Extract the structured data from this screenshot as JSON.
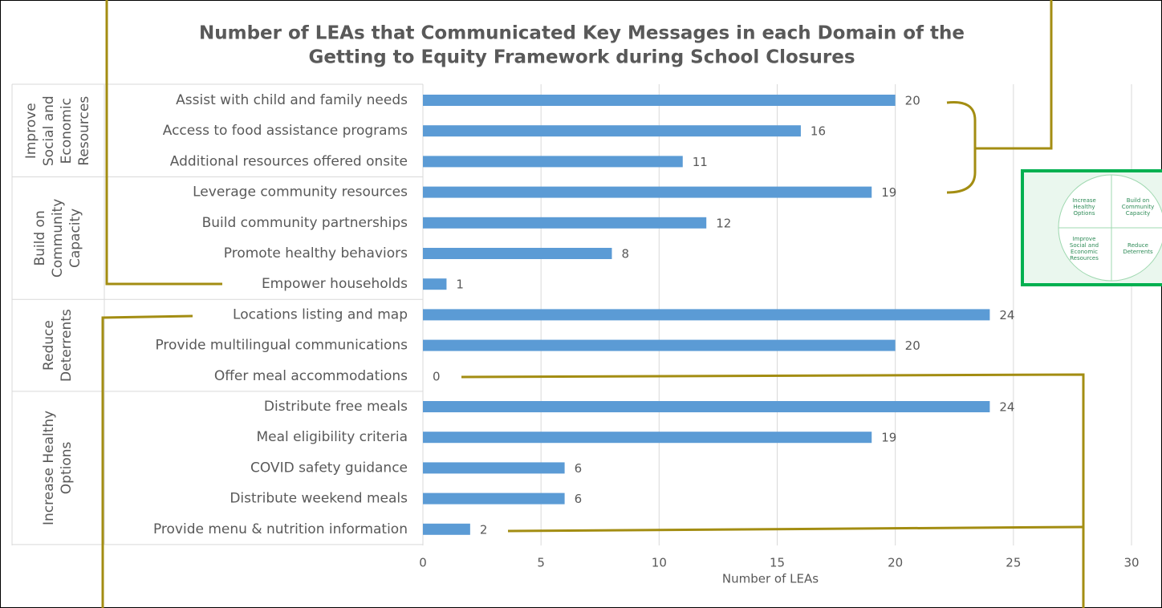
{
  "chart_data": {
    "type": "bar",
    "orientation": "horizontal",
    "title": [
      "Number of LEAs that Communicated Key Messages in each Domain of the",
      "Getting to Equity Framework during School Closures"
    ],
    "xlabel": "Number of LEAs",
    "color": "#5b9bd5",
    "xlim": [
      0,
      30
    ],
    "xticks": [
      0,
      5,
      10,
      15,
      20,
      25,
      30
    ],
    "grid": true,
    "groups": [
      {
        "label": [
          "Improve",
          "Social and",
          "Economic",
          "Resources"
        ],
        "categories": [
          "Assist with child and family needs",
          "Access to food assistance programs",
          "Additional resources offered onsite"
        ],
        "values": [
          20,
          16,
          11
        ]
      },
      {
        "label": [
          "Build on",
          "Community",
          "Capacity"
        ],
        "categories": [
          "Leverage community resources",
          "Build community partnerships",
          "Promote healthy behaviors",
          "Empower households"
        ],
        "values": [
          19,
          12,
          8,
          1
        ]
      },
      {
        "label": [
          "Reduce",
          "Deterrents"
        ],
        "categories": [
          "Locations listing and map",
          "Provide multilingual communications",
          "Offer meal accommodations"
        ],
        "values": [
          24,
          20,
          0
        ]
      },
      {
        "label": [
          "Increase Healthy",
          "Options"
        ],
        "categories": [
          "Distribute free meals",
          "Meal eligibility criteria",
          "COVID safety guidance",
          "Distribute weekend meals",
          "Provide menu & nutrition information"
        ],
        "values": [
          24,
          19,
          6,
          6,
          2
        ]
      }
    ]
  },
  "inset": {
    "quadrants": [
      [
        "Increase",
        "Healthy",
        "Options"
      ],
      [
        "Build on",
        "Community",
        "Capacity"
      ],
      [
        "Improve",
        "Social and",
        "Economic",
        "Resources"
      ],
      [
        "Reduce",
        "Deterrents"
      ]
    ]
  }
}
